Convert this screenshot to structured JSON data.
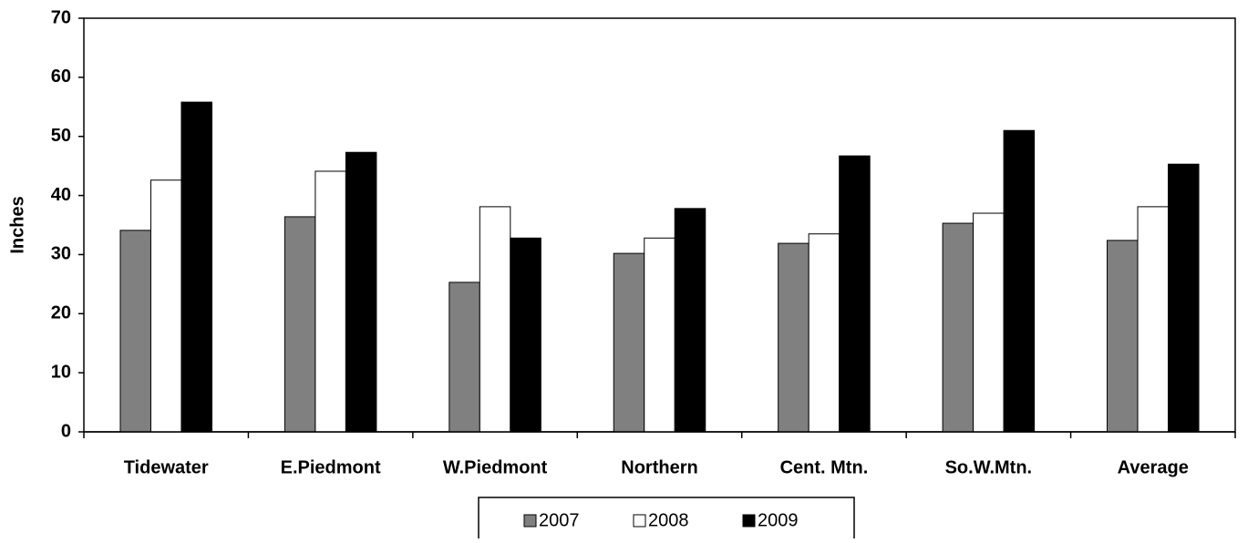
{
  "chart_data": {
    "type": "bar",
    "ylabel": "Inches",
    "categories": [
      "Tidewater",
      "E.Piedmont",
      "W.Piedmont",
      "Northern",
      "Cent. Mtn.",
      "So.W.Mtn.",
      "Average"
    ],
    "series": [
      {
        "name": "2007",
        "color": "#808080",
        "values": [
          34.1,
          36.4,
          25.3,
          30.2,
          31.9,
          35.3,
          32.4
        ]
      },
      {
        "name": "2008",
        "color": "#ffffff",
        "values": [
          42.6,
          44.1,
          38.1,
          32.8,
          33.5,
          37.0,
          38.1
        ]
      },
      {
        "name": "2009",
        "color": "#000000",
        "values": [
          55.8,
          47.3,
          32.8,
          37.8,
          46.7,
          51.0,
          45.3
        ]
      }
    ],
    "ylim": [
      0,
      70
    ],
    "yticks": [
      0,
      10,
      20,
      30,
      40,
      50,
      60,
      70
    ],
    "legend": "bottom"
  }
}
